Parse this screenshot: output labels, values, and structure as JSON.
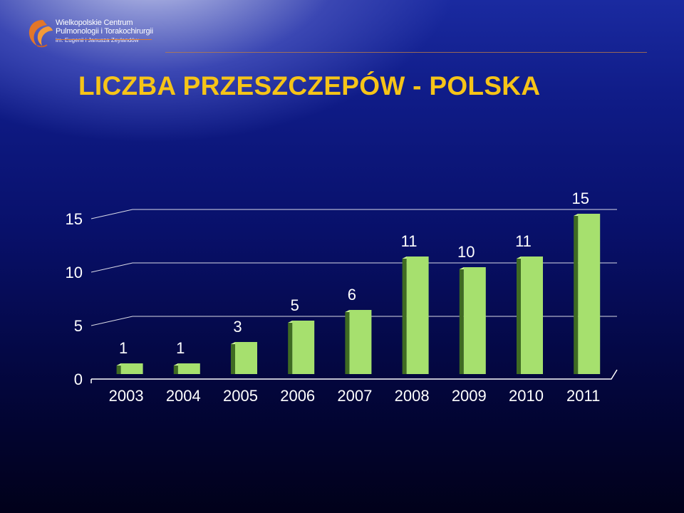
{
  "logo": {
    "line1": "Wielkopolskie Centrum",
    "line2": "Pulmonologii i Torakochirurgii",
    "line3": "im. Eugenii i Janusza Zeylandów"
  },
  "title": "LICZBA PRZESZCZEPÓW - POLSKA",
  "colors": {
    "title": "#f6c418",
    "bar_front": "#a6e06e",
    "bar_side": "#3f6b22",
    "bar_top": "#cdf29c",
    "text": "#ffffff",
    "axis": "#ffffff"
  },
  "chart_data": {
    "type": "bar",
    "categories": [
      "2003",
      "2004",
      "2005",
      "2006",
      "2007",
      "2008",
      "2009",
      "2010",
      "2011"
    ],
    "values": [
      1,
      1,
      3,
      5,
      6,
      11,
      10,
      11,
      15
    ],
    "data_labels": [
      "1",
      "1",
      "3",
      "5",
      "6",
      "11",
      "10",
      "11",
      "15"
    ],
    "yticks": [
      "0",
      "5",
      "10",
      "15"
    ],
    "ylim": [
      0,
      15
    ],
    "title": "",
    "xlabel": "",
    "ylabel": "",
    "grid": true,
    "legend": "none",
    "style": "3d"
  }
}
